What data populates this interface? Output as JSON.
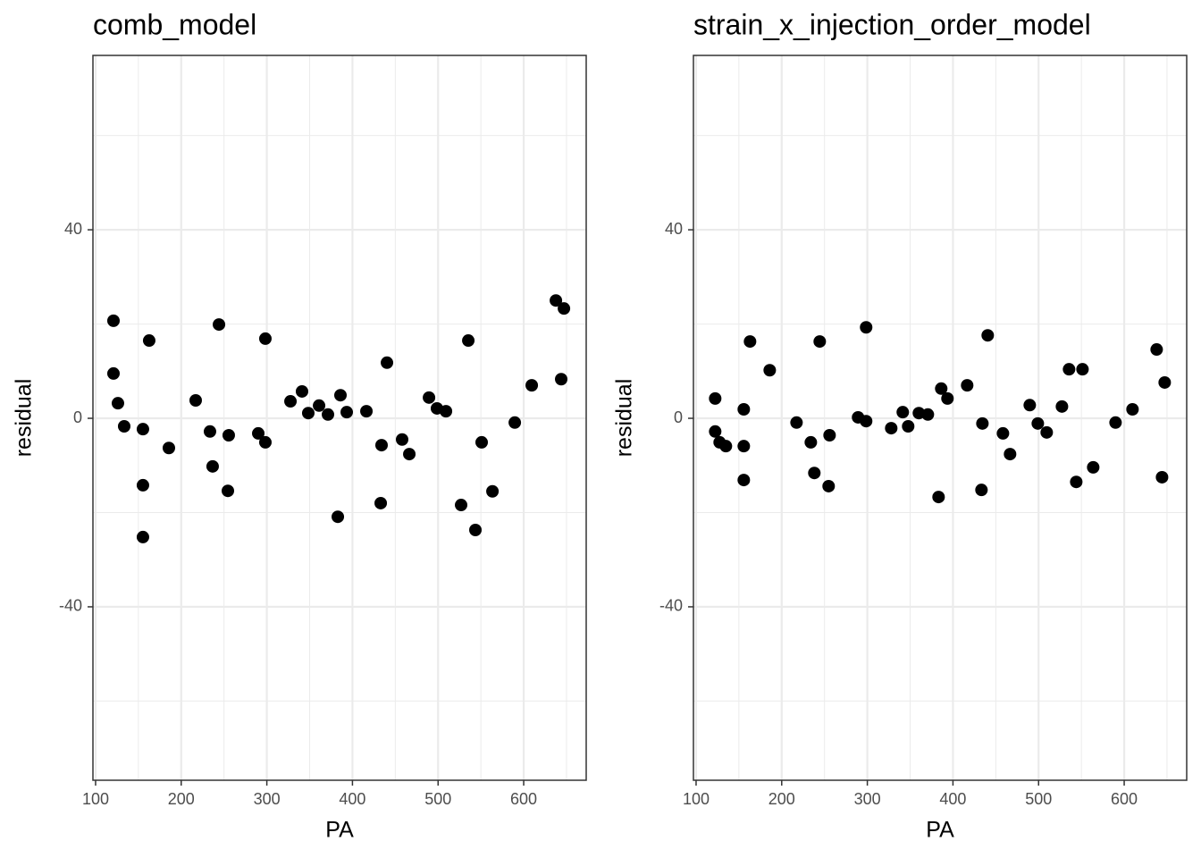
{
  "chart_data": [
    {
      "type": "scatter",
      "title": "comb_model",
      "x_label": "PA",
      "y_label": "residual",
      "color": "#000000",
      "grid": true,
      "xlim": [
        96.9,
        673
      ],
      "ylim": [
        -76.8,
        77
      ],
      "xticks": [
        100,
        200,
        300,
        400,
        500,
        600
      ],
      "xminor": [
        150,
        250,
        350,
        450,
        550,
        650
      ],
      "yticks": [
        -40,
        0,
        40
      ],
      "yminor": [
        -60,
        -20,
        20,
        60
      ],
      "x": [
        120.9,
        120.9,
        126.1,
        133.4,
        155.3,
        162.6,
        155.3,
        155.3,
        185.6,
        216.9,
        233.6,
        236.7,
        244.1,
        255.5,
        254.5,
        290,
        298.3,
        298.3,
        327.6,
        341.1,
        348.4,
        361,
        371.4,
        382.9,
        386,
        393.3,
        416.3,
        434,
        433,
        440.3,
        458,
        466.4,
        489.4,
        498.7,
        509.2,
        526.9,
        535.3,
        543.6,
        550.9,
        563.5,
        589.6,
        609.4,
        637.6,
        643.8,
        647
      ],
      "values": [
        20.7,
        9.5,
        3.2,
        -1.7,
        -2.3,
        16.5,
        -14.2,
        -25.2,
        -6.3,
        3.8,
        -2.8,
        -10.2,
        19.9,
        -3.6,
        -15.4,
        -3.2,
        16.9,
        -5.1,
        3.6,
        5.7,
        1.1,
        2.7,
        0.8,
        -20.9,
        4.9,
        1.3,
        1.5,
        -5.7,
        -18,
        11.8,
        -4.5,
        -7.6,
        4.4,
        2.1,
        1.5,
        -18.4,
        16.5,
        -23.7,
        -5.1,
        -15.5,
        -0.9,
        7,
        25,
        8.3,
        23.3
      ]
    },
    {
      "type": "scatter",
      "title": "strain_x_injection_order_model",
      "x_label": "PA",
      "y_label": "residual",
      "color": "#000000",
      "grid": true,
      "xlim": [
        96.9,
        673
      ],
      "ylim": [
        -76.8,
        77
      ],
      "xticks": [
        100,
        200,
        300,
        400,
        500,
        600
      ],
      "xminor": [
        150,
        250,
        350,
        450,
        550,
        650
      ],
      "yticks": [
        -40,
        0,
        40
      ],
      "yminor": [
        -60,
        -20,
        20,
        60
      ],
      "x": [
        122.3,
        122.3,
        127.5,
        134.8,
        155.7,
        155.7,
        155.7,
        163,
        186,
        217.3,
        234,
        238.1,
        244.4,
        255.9,
        254.8,
        289.2,
        298.6,
        298.6,
        327.9,
        341.4,
        347.7,
        360.2,
        370.7,
        383.2,
        386.3,
        393.6,
        416.6,
        434.4,
        433.3,
        440.6,
        458.4,
        466.7,
        489.7,
        499.1,
        509.5,
        527.3,
        535.6,
        544,
        551.3,
        563.8,
        589.9,
        609.7,
        637.9,
        644.2,
        647.3
      ],
      "values": [
        4.2,
        -2.8,
        -5.1,
        -5.9,
        1.9,
        -5.9,
        -13.1,
        16.3,
        10.2,
        -0.9,
        -5.1,
        -11.6,
        16.3,
        -3.6,
        -14.4,
        0.2,
        19.3,
        -0.6,
        -2.1,
        1.3,
        -1.7,
        1.1,
        0.8,
        -16.7,
        6.3,
        4.2,
        7,
        -1.1,
        -15.2,
        17.6,
        -3.2,
        -7.6,
        2.8,
        -1.1,
        -3,
        2.5,
        10.4,
        -13.5,
        10.4,
        -10.4,
        -0.9,
        1.9,
        14.6,
        -12.5,
        7.6
      ]
    }
  ]
}
